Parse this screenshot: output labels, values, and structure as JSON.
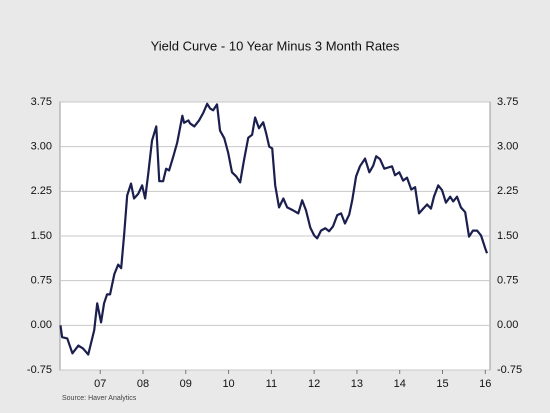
{
  "chart_data": {
    "type": "line",
    "title": "Yield Curve - 10 Year Minus 3 Month Rates",
    "source": "Source:  Haver Analytics",
    "xlim": [
      2006.56,
      2016.61
    ],
    "xticks": [
      {
        "value": 2007.5,
        "label": "07"
      },
      {
        "value": 2008.5,
        "label": "08"
      },
      {
        "value": 2009.5,
        "label": "09"
      },
      {
        "value": 2010.5,
        "label": "10"
      },
      {
        "value": 2011.5,
        "label": "11"
      },
      {
        "value": 2012.5,
        "label": "12"
      },
      {
        "value": 2013.5,
        "label": "13"
      },
      {
        "value": 2014.5,
        "label": "14"
      },
      {
        "value": 2015.5,
        "label": "15"
      },
      {
        "value": 2016.5,
        "label": "16"
      }
    ],
    "ylim": [
      -0.75,
      3.75
    ],
    "yticks": [
      -0.75,
      {
        "value": 0,
        "label": "0.00"
      },
      0.75,
      {
        "value": 1.5,
        "label": "1.50"
      },
      2.25,
      {
        "value": 3,
        "label": "3.00"
      },
      3.75
    ],
    "y2lim": [
      -0.75,
      3.75
    ],
    "y2ticks": [
      -0.75,
      {
        "value": 0,
        "label": "0.00"
      },
      0.75,
      {
        "value": 1.5,
        "label": "1.50"
      },
      2.25,
      {
        "value": 3,
        "label": "3.00"
      },
      3.75
    ],
    "grid": true,
    "series": [
      {
        "color": "#1b1f4e",
        "x": [
          2006.57,
          2006.61,
          2006.73,
          2006.85,
          2006.99,
          2007.1,
          2007.22,
          2007.36,
          2007.43,
          2007.52,
          2007.59,
          2007.66,
          2007.73,
          2007.83,
          2007.92,
          2007.99,
          2008.06,
          2008.13,
          2008.22,
          2008.29,
          2008.39,
          2008.48,
          2008.55,
          2008.62,
          2008.71,
          2008.81,
          2008.88,
          2008.97,
          2009.04,
          2009.11,
          2009.21,
          2009.3,
          2009.42,
          2009.46,
          2009.56,
          2009.6,
          2009.7,
          2009.81,
          2009.91,
          2010.0,
          2010.07,
          2010.14,
          2010.23,
          2010.3,
          2010.4,
          2010.49,
          2010.58,
          2010.68,
          2010.77,
          2010.86,
          2010.96,
          2011.05,
          2011.12,
          2011.21,
          2011.31,
          2011.38,
          2011.45,
          2011.52,
          2011.59,
          2011.68,
          2011.78,
          2011.87,
          2012.01,
          2012.13,
          2012.22,
          2012.31,
          2012.41,
          2012.5,
          2012.57,
          2012.66,
          2012.76,
          2012.85,
          2012.94,
          2013.04,
          2013.13,
          2013.22,
          2013.32,
          2013.39,
          2013.48,
          2013.57,
          2013.69,
          2013.79,
          2013.88,
          2013.95,
          2014.04,
          2014.14,
          2014.23,
          2014.32,
          2014.39,
          2014.49,
          2014.58,
          2014.67,
          2014.77,
          2014.86,
          2014.95,
          2015.05,
          2015.14,
          2015.23,
          2015.3,
          2015.4,
          2015.49,
          2015.58,
          2015.68,
          2015.75,
          2015.84,
          2015.93,
          2016.03,
          2016.12,
          2016.21,
          2016.31,
          2016.4,
          2016.5,
          2016.54
        ],
        "values": [
          0.0,
          -0.2,
          -0.22,
          -0.47,
          -0.34,
          -0.39,
          -0.49,
          -0.08,
          0.37,
          0.05,
          0.37,
          0.52,
          0.52,
          0.86,
          1.02,
          0.96,
          1.53,
          2.18,
          2.38,
          2.13,
          2.21,
          2.35,
          2.13,
          2.53,
          3.1,
          3.34,
          2.42,
          2.42,
          2.63,
          2.6,
          2.84,
          3.07,
          3.52,
          3.4,
          3.44,
          3.39,
          3.34,
          3.44,
          3.57,
          3.72,
          3.64,
          3.61,
          3.71,
          3.27,
          3.14,
          2.9,
          2.57,
          2.5,
          2.4,
          2.77,
          3.15,
          3.2,
          3.49,
          3.31,
          3.41,
          3.22,
          3.0,
          2.97,
          2.35,
          1.98,
          2.13,
          1.98,
          1.93,
          1.88,
          2.1,
          1.93,
          1.64,
          1.51,
          1.46,
          1.59,
          1.63,
          1.58,
          1.66,
          1.85,
          1.88,
          1.71,
          1.86,
          2.1,
          2.5,
          2.67,
          2.8,
          2.57,
          2.68,
          2.84,
          2.79,
          2.63,
          2.65,
          2.67,
          2.52,
          2.57,
          2.43,
          2.48,
          2.28,
          2.32,
          1.88,
          1.96,
          2.03,
          1.96,
          2.16,
          2.35,
          2.27,
          2.06,
          2.16,
          2.08,
          2.16,
          1.98,
          1.9,
          1.49,
          1.59,
          1.59,
          1.51,
          1.29,
          1.21
        ]
      }
    ]
  }
}
